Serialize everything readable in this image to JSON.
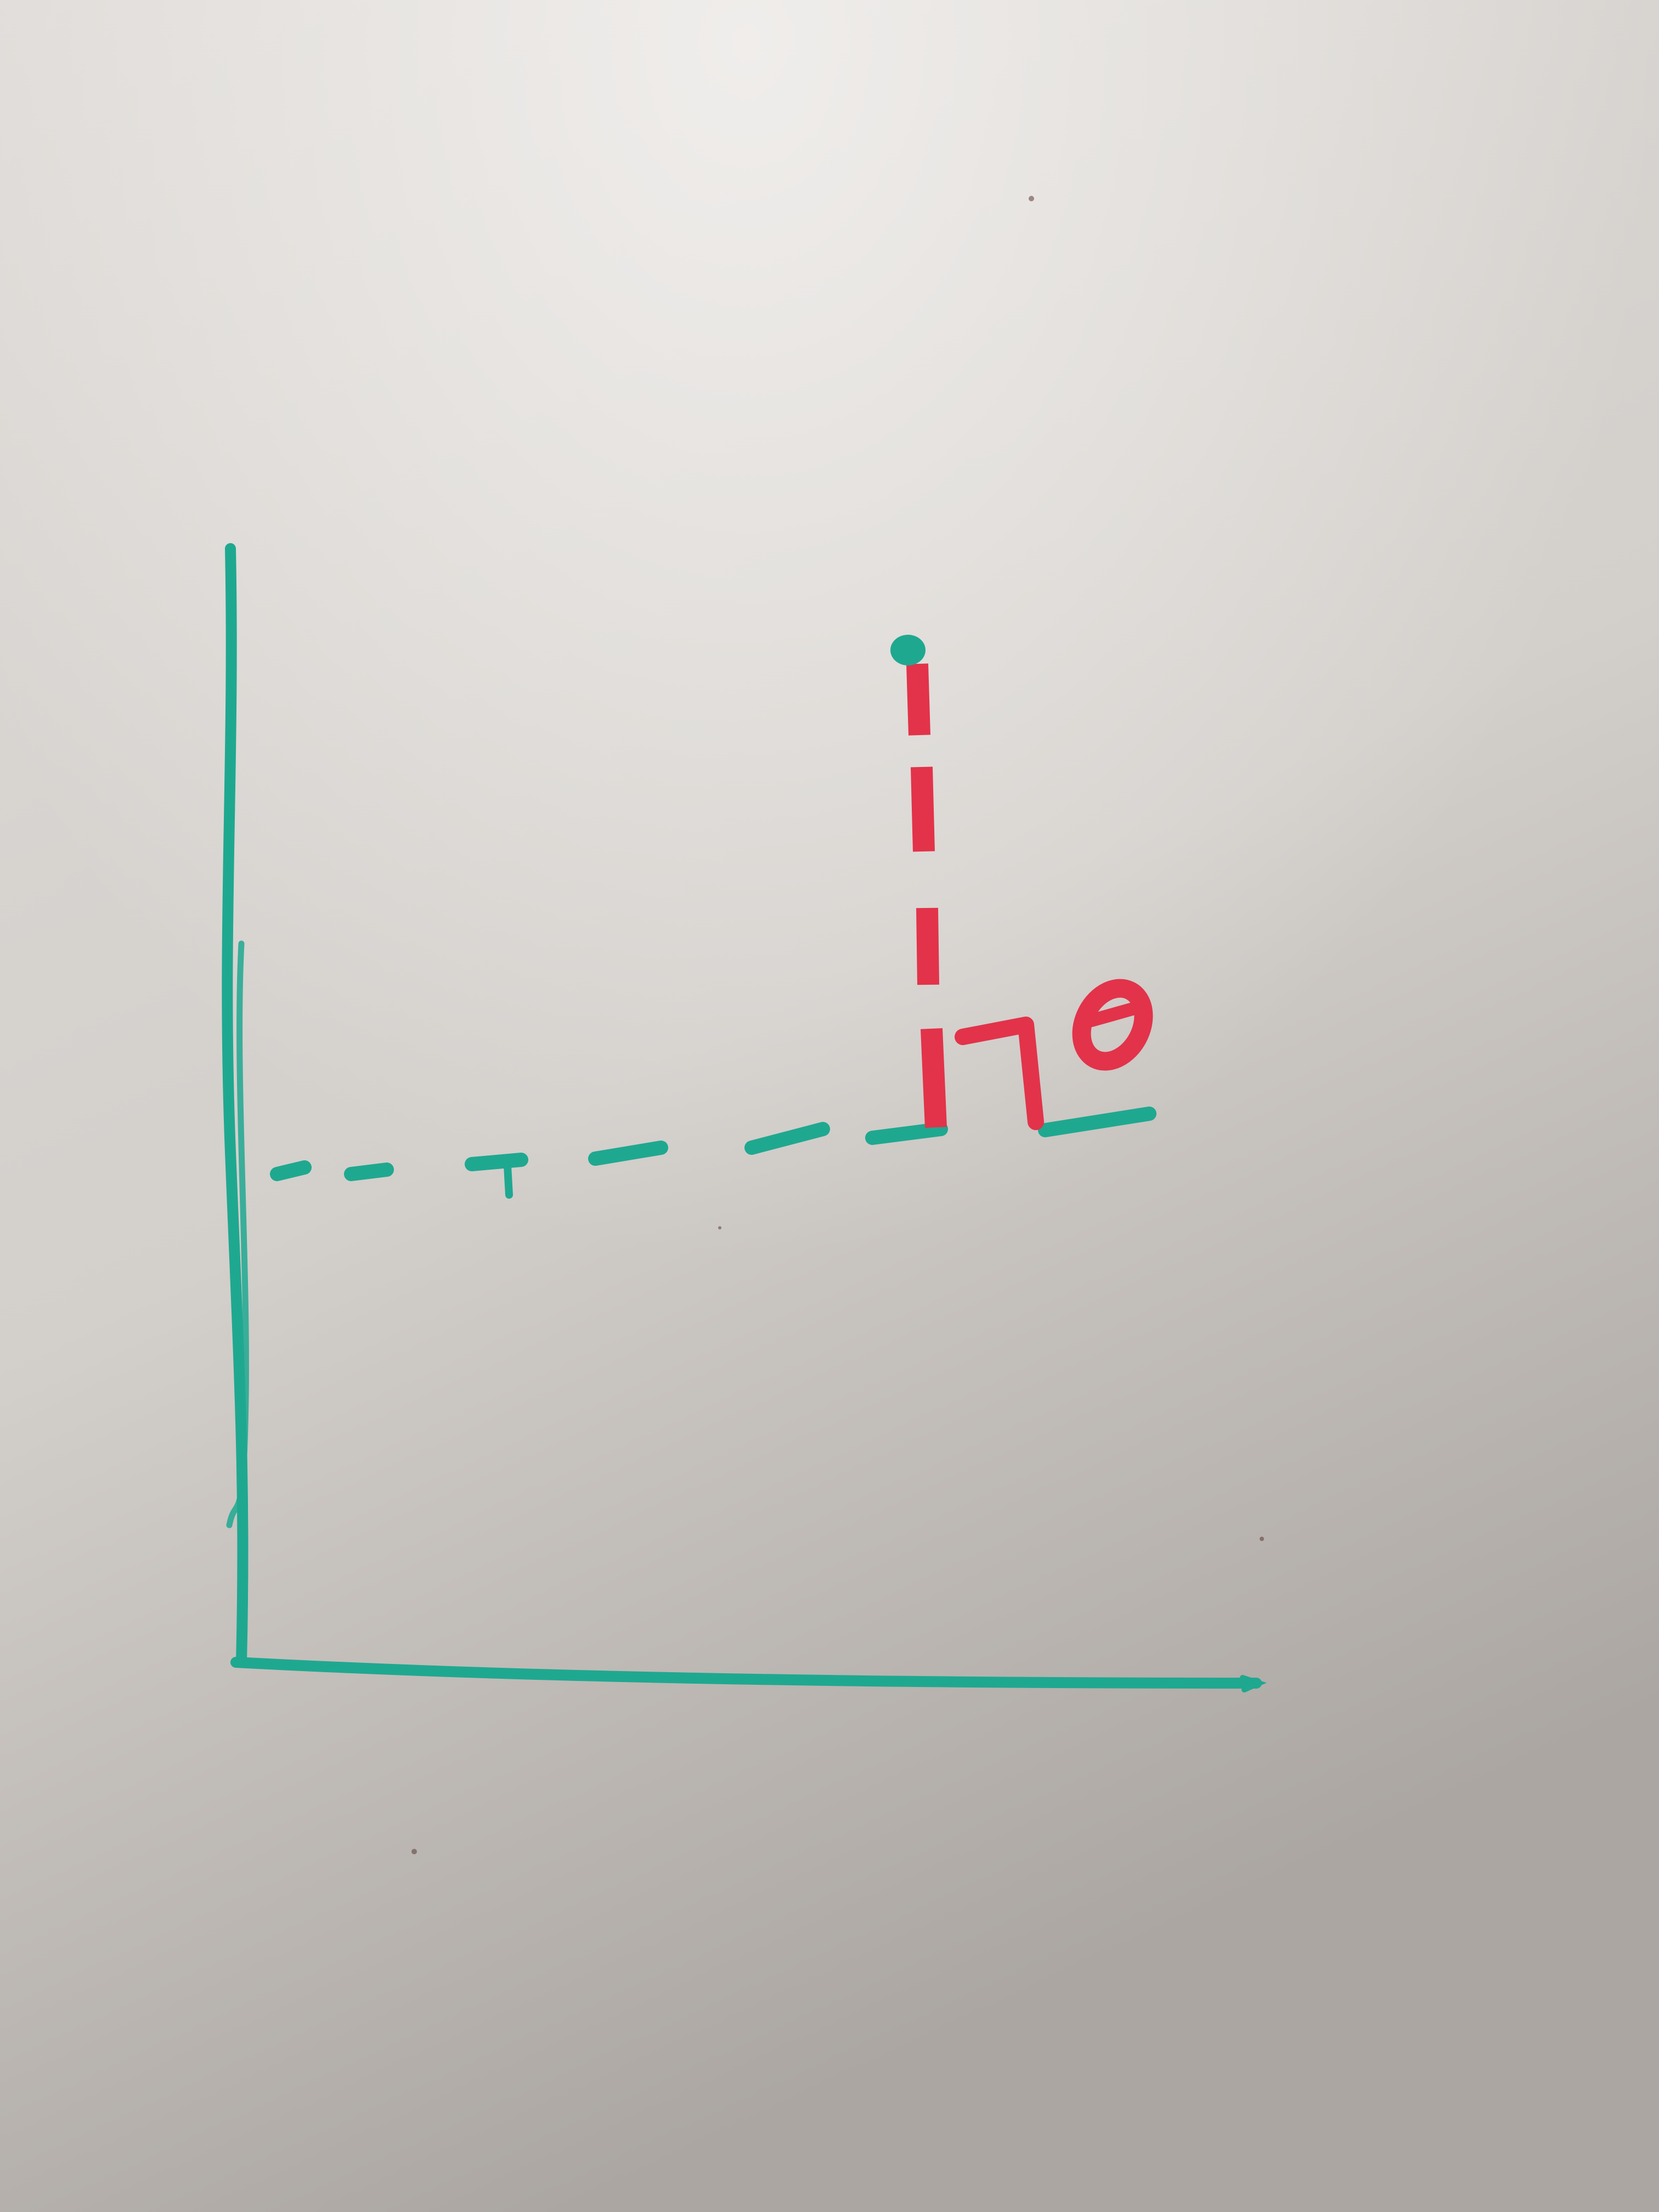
{
  "board": {
    "surface_color": "#dedad7",
    "surface_shadow_color": "#aba6a2"
  },
  "ink": {
    "axis_color": "#1fa890",
    "guide_color": "#1fa890",
    "drop_line_color": "#e2334a",
    "angle_color": "#e2334a"
  },
  "drawing": {
    "point_icon": "point-marker-icon",
    "angle_symbol": "right-angle-mark-icon",
    "theta_symbol": "theta-symbol-icon"
  }
}
